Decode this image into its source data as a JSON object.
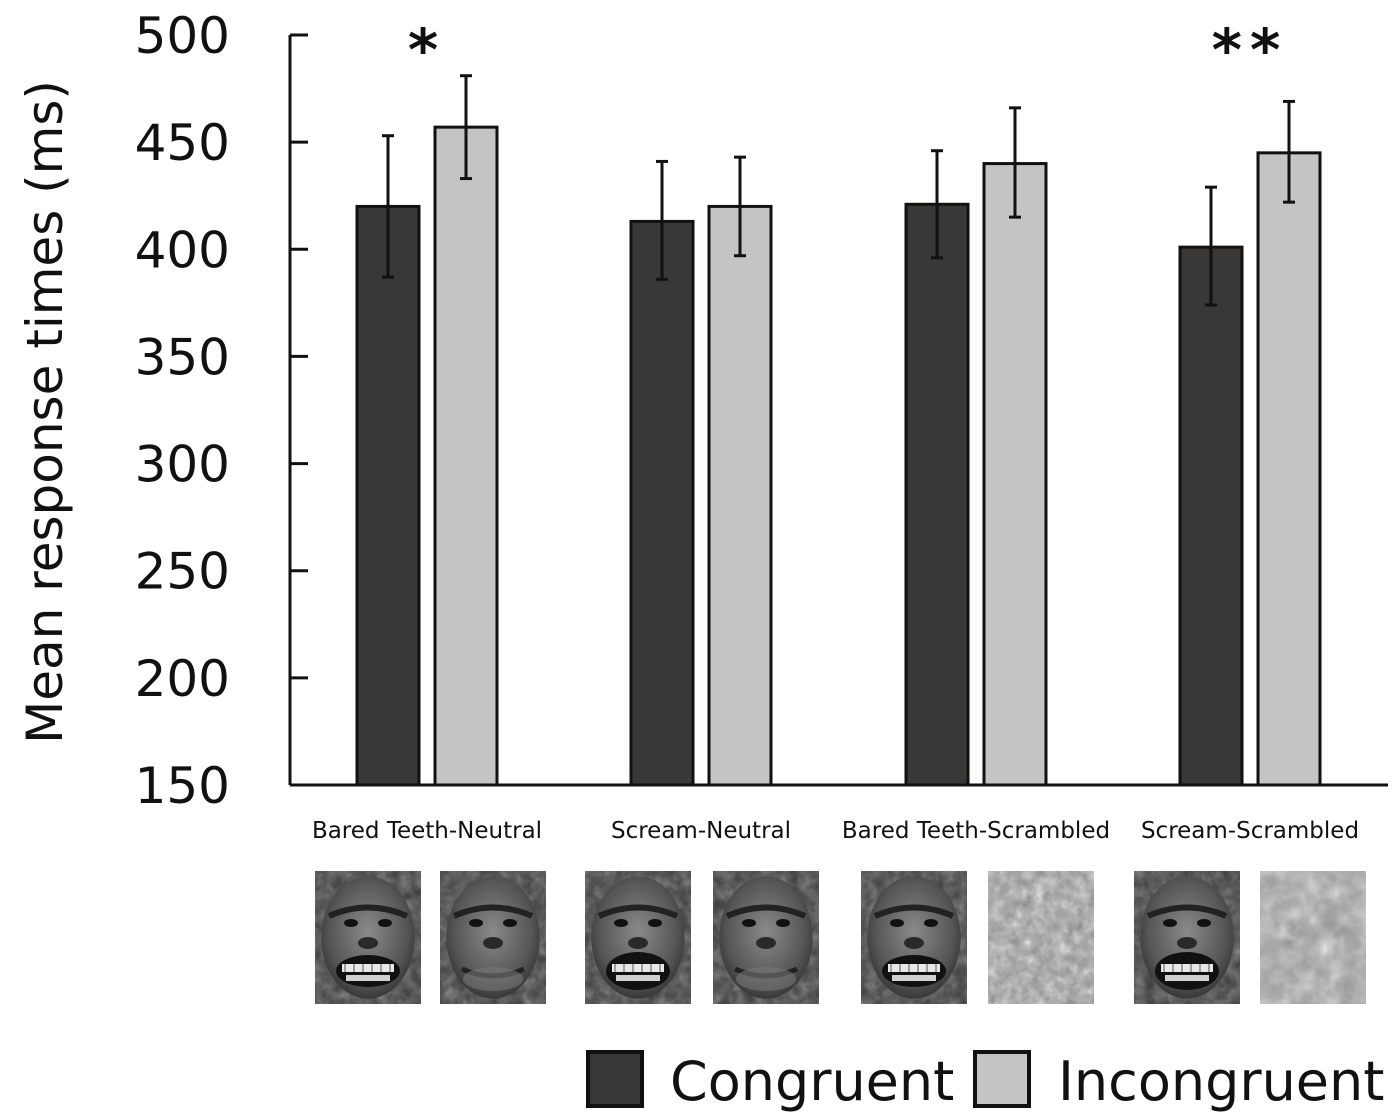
{
  "chart_data": {
    "type": "bar",
    "title": "",
    "xlabel": "",
    "ylabel": "Mean response times (ms)",
    "ylim": [
      150,
      500
    ],
    "yticks": [
      "150",
      "200",
      "250",
      "300",
      "350",
      "400",
      "450",
      "500"
    ],
    "categories": [
      "Bared Teeth-Neutral",
      "Scream-Neutral",
      "Bared Teeth-Scrambled",
      "Scream-Scrambled"
    ],
    "series": [
      {
        "name": "Congruent",
        "color": "#393836",
        "values": [
          420,
          413,
          421,
          401
        ],
        "error_low": [
          387,
          386,
          396,
          374
        ],
        "error_high": [
          453,
          441,
          446,
          429
        ]
      },
      {
        "name": "Incongruent",
        "color": "#c4c4c4",
        "values": [
          457,
          420,
          440,
          445
        ],
        "error_low": [
          433,
          397,
          415,
          422
        ],
        "error_high": [
          481,
          443,
          466,
          469
        ]
      }
    ],
    "significance": [
      "*",
      "",
      "",
      "**"
    ],
    "grid": false,
    "legend_position": "bottom-right",
    "stimulus_images": [
      [
        "bared-teeth-chimpanzee-face",
        "neutral-chimpanzee-face"
      ],
      [
        "scream-chimpanzee-face",
        "neutral-chimpanzee-face"
      ],
      [
        "bared-teeth-chimpanzee-face",
        "scrambled-image"
      ],
      [
        "scream-chimpanzee-face",
        "scrambled-image"
      ]
    ]
  }
}
